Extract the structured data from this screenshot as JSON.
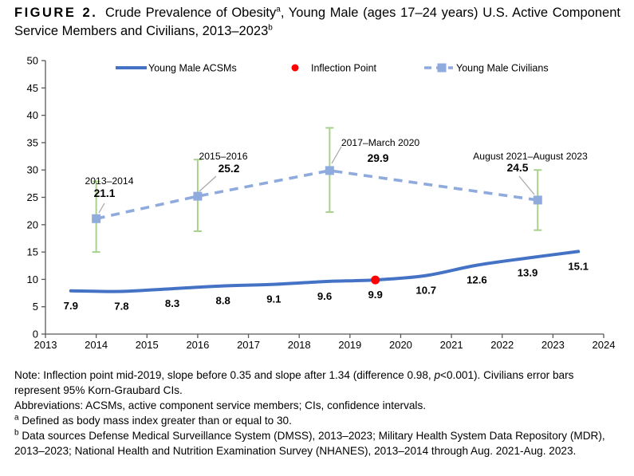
{
  "figure_title": {
    "label": "FIGURE 2.",
    "part1": "Crude Prevalence of Obesity",
    "sup1": "a",
    "part2": ", Young Male (ages 17–24 years) U.S. Active Component Service Members and Civilians, 2013–2023",
    "sup2": "b"
  },
  "chart_data": {
    "type": "line",
    "title": "",
    "xlabel": "",
    "ylabel": "",
    "xlim": [
      2013,
      2024
    ],
    "ylim": [
      0,
      50
    ],
    "x_ticks": [
      2013,
      2014,
      2015,
      2016,
      2017,
      2018,
      2019,
      2020,
      2021,
      2022,
      2023,
      2024
    ],
    "y_ticks": [
      0,
      5,
      10,
      15,
      20,
      25,
      30,
      35,
      40,
      45,
      50
    ],
    "grid": false,
    "axis_color": "#595959",
    "legend": {
      "position": "top-inside",
      "entries": [
        {
          "label": "Young Male ACSMs",
          "type": "solid-line",
          "color": "#4472C4"
        },
        {
          "label": "Inflection Point",
          "type": "dot",
          "color": "#FF0000"
        },
        {
          "label": "Young Male Civilians",
          "type": "dashed-line-square",
          "color": "#8FAADC"
        }
      ]
    },
    "series": [
      {
        "name": "Young Male ACSMs",
        "type": "smooth-line",
        "color": "#4472C4",
        "x": [
          2013.5,
          2014.5,
          2015.5,
          2016.5,
          2017.5,
          2018.5,
          2019.5,
          2020.5,
          2021.5,
          2022.5,
          2023.5
        ],
        "values": [
          7.9,
          7.8,
          8.3,
          8.8,
          9.1,
          9.6,
          9.9,
          10.7,
          12.6,
          13.9,
          15.1
        ],
        "value_labels": [
          "7.9",
          "7.8",
          "8.3",
          "8.8",
          "9.1",
          "9.6",
          "9.9",
          "10.7",
          "12.6",
          "13.9",
          "15.1"
        ]
      },
      {
        "name": "Young Male Civilians",
        "type": "dashed-line",
        "color": "#8FAADC",
        "error_bar_color": "#A9D18E",
        "leader_color": "#A6A6A6",
        "points": [
          {
            "x": 2014.0,
            "value": 21.1,
            "ci_low": 15.0,
            "ci_high": 27.9,
            "period_label": "2013–2014",
            "value_label": "21.1"
          },
          {
            "x": 2016.0,
            "value": 25.2,
            "ci_low": 18.8,
            "ci_high": 31.9,
            "period_label": "2015–2016",
            "value_label": "25.2"
          },
          {
            "x": 2018.6,
            "value": 29.9,
            "ci_low": 22.3,
            "ci_high": 37.7,
            "period_label": "2017–March 2020",
            "value_label": "29.9"
          },
          {
            "x": 2022.7,
            "value": 24.5,
            "ci_low": 19.0,
            "ci_high": 30.0,
            "period_label": "August 2021–August 2023",
            "value_label": "24.5"
          }
        ]
      },
      {
        "name": "Inflection Point",
        "type": "point",
        "color": "#FF0000",
        "x": 2019.5,
        "value": 9.9
      }
    ]
  },
  "notes": {
    "note_part1": "Note: Inflection point mid-2019, slope before 0.35 and slope after 1.34 (difference 0.98, ",
    "note_italic": "p",
    "note_part2": "<0.001). Civilians error bars represent 95% Korn-Graubard CIs.",
    "abbreviations": "Abbreviations: ACSMs, active component service members; CIs, confidence intervals.",
    "footnote_a_marker": "a",
    "footnote_a": " Defined as body mass index greater than or equal to 30.",
    "footnote_b_marker": "b",
    "footnote_b": " Data sources Defense Medical Surveillance System (DMSS), 2013–2023; Military Health System Data Repository (MDR), 2013–2023; National Health and Nutrition Examination Survey (NHANES), 2013–2014 through Aug. 2021-Aug. 2023."
  }
}
